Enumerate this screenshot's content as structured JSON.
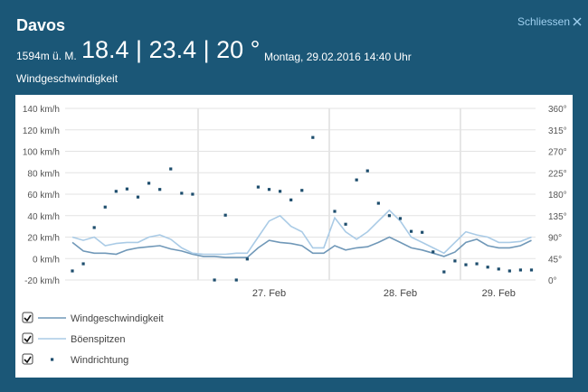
{
  "header": {
    "location": "Davos",
    "elevation": "1594m ü. M.",
    "temps": "18.4 | 23.4 | 20 °",
    "datetime": "Montag, 29.02.2016 14:40 Uhr",
    "close": "Schliessen"
  },
  "chart_data": {
    "type": "line",
    "title": "Windgeschwindigkeit",
    "categories": [
      null,
      null,
      null,
      null,
      null,
      null,
      null,
      null,
      null,
      null,
      null,
      null,
      null,
      null,
      null,
      null,
      null,
      null,
      "27. Feb",
      null,
      null,
      null,
      null,
      null,
      null,
      null,
      null,
      null,
      null,
      null,
      "28. Feb",
      null,
      null,
      null,
      null,
      null,
      null,
      null,
      null,
      "29. Feb",
      null,
      null,
      null
    ],
    "series": [
      {
        "name": "Windgeschwindigkeit",
        "type": "line",
        "color": "#7098b8",
        "values": [
          15,
          7,
          5,
          5,
          4,
          8,
          10,
          11,
          12,
          9,
          7,
          4,
          2,
          2,
          1,
          1,
          1,
          10,
          17,
          15,
          14,
          12,
          5,
          5,
          12,
          8,
          10,
          11,
          15,
          20,
          15,
          10,
          8,
          5,
          2,
          6,
          15,
          18,
          12,
          10,
          10,
          12,
          17
        ]
      },
      {
        "name": "Böenspitzen",
        "type": "line",
        "color": "#aacbe6",
        "values": [
          20,
          17,
          20,
          12,
          14,
          15,
          15,
          20,
          22,
          18,
          10,
          5,
          4,
          4,
          4,
          5,
          5,
          20,
          35,
          40,
          30,
          25,
          10,
          10,
          38,
          25,
          18,
          25,
          35,
          45,
          35,
          20,
          15,
          10,
          5,
          15,
          25,
          22,
          20,
          15,
          15,
          16,
          20
        ]
      },
      {
        "name": "Windrichtung",
        "type": "scatter",
        "axis": "y2",
        "color": "#1d4d6d",
        "values": [
          19,
          34,
          110,
          153,
          186,
          191,
          174,
          203,
          190,
          233,
          182,
          180,
          null,
          0,
          136,
          0,
          44,
          195,
          190,
          186,
          168,
          188,
          299,
          null,
          144,
          117,
          210,
          229,
          161,
          135,
          129,
          102,
          100,
          59,
          17,
          40,
          32,
          34,
          27,
          23,
          19,
          21,
          21
        ]
      }
    ],
    "ylim": [
      -20,
      140
    ],
    "yticks": [
      {
        "value": -20,
        "label": "-20 km/h"
      },
      {
        "value": 0,
        "label": "0 km/h"
      },
      {
        "value": 20,
        "label": "20 km/h"
      },
      {
        "value": 40,
        "label": "40 km/h"
      },
      {
        "value": 60,
        "label": "60 km/h"
      },
      {
        "value": 80,
        "label": "80 km/h"
      },
      {
        "value": 100,
        "label": "100 km/h"
      },
      {
        "value": 120,
        "label": "120 km/h"
      },
      {
        "value": 140,
        "label": "140 km/h"
      }
    ],
    "y2lim": [
      0,
      360
    ],
    "y2ticks": [
      {
        "value": 0,
        "label": "0°"
      },
      {
        "value": 45,
        "label": "45°"
      },
      {
        "value": 90,
        "label": "90°"
      },
      {
        "value": 135,
        "label": "135°"
      },
      {
        "value": 180,
        "label": "180°"
      },
      {
        "value": 225,
        "label": "225°"
      },
      {
        "value": 270,
        "label": "270°"
      },
      {
        "value": 315,
        "label": "315°"
      },
      {
        "value": 360,
        "label": "360°"
      }
    ],
    "grid": true
  }
}
